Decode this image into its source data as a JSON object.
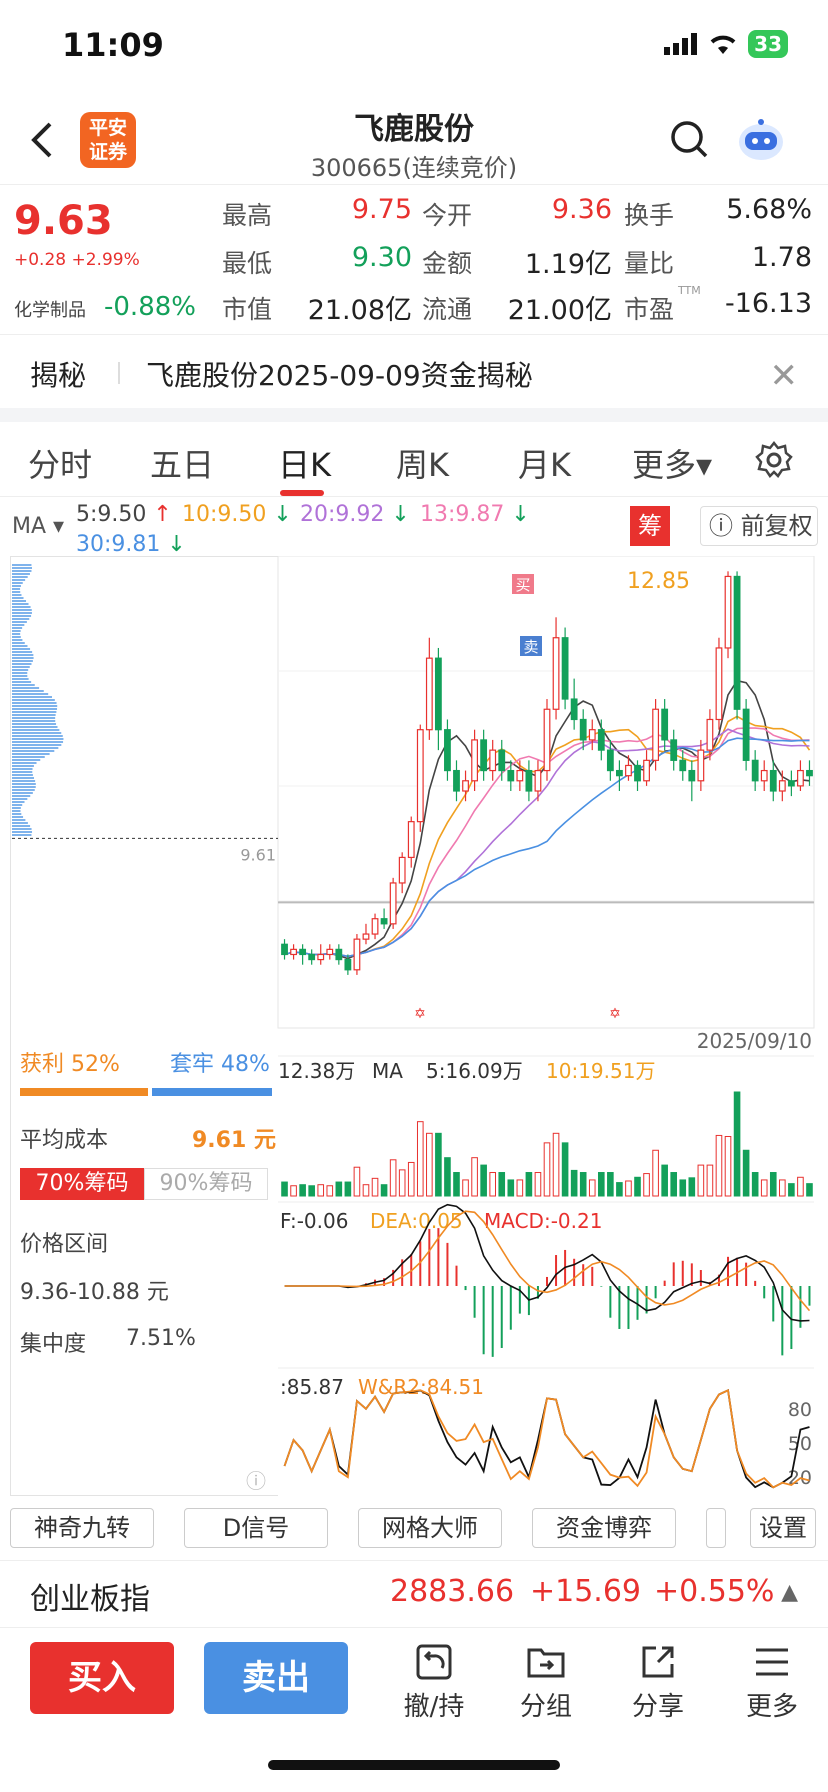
{
  "status_bar": {
    "time": "11:09",
    "battery": "33"
  },
  "header": {
    "title": "飞鹿股份",
    "subtitle": "300665(连续竞价)",
    "broker_logo": "平安证券"
  },
  "quote": {
    "price": "9.63",
    "change": "+0.28 +2.99%",
    "industry": "化学制品",
    "industry_change": "-0.88%",
    "fields": [
      {
        "label": "最高",
        "value": "9.75",
        "tone": "red"
      },
      {
        "label": "今开",
        "value": "9.36",
        "tone": "red"
      },
      {
        "label": "换手",
        "value": "5.68%",
        "tone": "dark"
      },
      {
        "label": "最低",
        "value": "9.30",
        "tone": "green"
      },
      {
        "label": "金额",
        "value": "1.19亿",
        "tone": "dark"
      },
      {
        "label": "量比",
        "value": "1.78",
        "tone": "dark"
      },
      {
        "label": "市值",
        "value": "21.08亿",
        "tone": "dark"
      },
      {
        "label": "流通",
        "value": "21.00亿",
        "tone": "dark"
      },
      {
        "label": "市盈",
        "label_sup": "TTM",
        "value": "-16.13",
        "tone": "dark"
      }
    ]
  },
  "announcement": {
    "tag": "揭秘",
    "text": "飞鹿股份2025-09-09资金揭秘"
  },
  "tabs": [
    "分时",
    "五日",
    "日K",
    "周K",
    "月K",
    "更多"
  ],
  "active_tab": "日K",
  "ma_legend": {
    "label": "MA",
    "items": [
      {
        "text": "5:9.50",
        "arrow": "↑",
        "color": "#444444",
        "arrow_color": "#e8312e"
      },
      {
        "text": "10:9.50",
        "arrow": "↓",
        "color": "#f0a020",
        "arrow_color": "#13a05a"
      },
      {
        "text": "20:9.92",
        "arrow": "↓",
        "color": "#b072d8",
        "arrow_color": "#13a05a"
      },
      {
        "text": "13:9.87",
        "arrow": "↓",
        "color": "#f07ab0",
        "arrow_color": "#13a05a"
      },
      {
        "text": "30:9.81",
        "arrow": "↓",
        "color": "#4a90e2",
        "arrow_color": "#13a05a"
      }
    ],
    "chou_label": "筹",
    "fuquan": "前复权"
  },
  "chip_panel": {
    "cost_line_value": "9.61",
    "profit_label": "获利 52%",
    "trapped_label": "套牢 48%",
    "profit_ratio": 0.52,
    "avg_cost_label": "平均成本",
    "avg_cost_value": "9.61 元",
    "btn70": "70%筹码",
    "btn90": "90%筹码",
    "range_label": "价格区间",
    "range_value": "9.36-10.88 元",
    "concentration_label": "集中度",
    "concentration_value": "7.51%"
  },
  "chart_data": {
    "type": "candlestick",
    "date_label": "2025/09/10",
    "high_annotation": "12.85",
    "buy_marker": "买",
    "sell_marker": "卖",
    "candles": [
      [
        9.2,
        9.1,
        9.25,
        9.05
      ],
      [
        9.1,
        9.15,
        9.2,
        9.05
      ],
      [
        9.15,
        9.1,
        9.2,
        9.0
      ],
      [
        9.1,
        9.05,
        9.15,
        9.0
      ],
      [
        9.05,
        9.1,
        9.2,
        9.0
      ],
      [
        9.1,
        9.15,
        9.2,
        9.05
      ],
      [
        9.15,
        9.05,
        9.2,
        9.0
      ],
      [
        9.05,
        8.95,
        9.1,
        8.9
      ],
      [
        8.95,
        9.25,
        9.3,
        8.9
      ],
      [
        9.25,
        9.3,
        9.4,
        9.2
      ],
      [
        9.3,
        9.45,
        9.5,
        9.25
      ],
      [
        9.45,
        9.4,
        9.55,
        9.35
      ],
      [
        9.4,
        9.8,
        9.85,
        9.35
      ],
      [
        9.8,
        10.05,
        10.1,
        9.7
      ],
      [
        10.05,
        10.4,
        10.45,
        9.95
      ],
      [
        10.4,
        11.3,
        11.35,
        10.3
      ],
      [
        11.3,
        12.0,
        12.2,
        11.2
      ],
      [
        12.0,
        11.3,
        12.1,
        11.1
      ],
      [
        11.3,
        10.9,
        11.4,
        10.8
      ],
      [
        10.9,
        10.7,
        11.0,
        10.6
      ],
      [
        10.7,
        10.8,
        10.9,
        10.6
      ],
      [
        10.8,
        11.2,
        11.3,
        10.7
      ],
      [
        11.2,
        10.9,
        11.3,
        10.8
      ],
      [
        10.9,
        11.1,
        11.2,
        10.8
      ],
      [
        11.1,
        10.9,
        11.2,
        10.8
      ],
      [
        10.9,
        10.8,
        11.0,
        10.7
      ],
      [
        10.8,
        10.9,
        11.0,
        10.7
      ],
      [
        10.9,
        10.7,
        11.0,
        10.6
      ],
      [
        10.7,
        10.9,
        11.0,
        10.6
      ],
      [
        10.9,
        11.5,
        11.6,
        10.8
      ],
      [
        11.5,
        12.2,
        12.4,
        11.4
      ],
      [
        12.2,
        11.6,
        12.3,
        11.5
      ],
      [
        11.6,
        11.4,
        11.8,
        11.3
      ],
      [
        11.4,
        11.2,
        11.5,
        11.1
      ],
      [
        11.2,
        11.3,
        11.4,
        11.1
      ],
      [
        11.3,
        11.1,
        11.4,
        11.0
      ],
      [
        11.1,
        10.9,
        11.2,
        10.8
      ],
      [
        10.9,
        10.85,
        11.0,
        10.7
      ],
      [
        10.85,
        10.95,
        11.05,
        10.8
      ],
      [
        10.95,
        10.8,
        11.0,
        10.7
      ],
      [
        10.8,
        11.0,
        11.1,
        10.75
      ],
      [
        11.0,
        11.5,
        11.6,
        10.9
      ],
      [
        11.5,
        11.2,
        11.6,
        11.1
      ],
      [
        11.2,
        11.0,
        11.3,
        10.9
      ],
      [
        11.0,
        10.9,
        11.1,
        10.8
      ],
      [
        10.9,
        10.8,
        11.0,
        10.6
      ],
      [
        10.8,
        11.1,
        11.2,
        10.7
      ],
      [
        11.1,
        11.4,
        11.5,
        11.0
      ],
      [
        11.4,
        12.1,
        12.2,
        11.3
      ],
      [
        12.1,
        12.8,
        12.85,
        12.0
      ],
      [
        12.8,
        11.5,
        12.85,
        11.4
      ],
      [
        11.5,
        11.0,
        11.6,
        10.9
      ],
      [
        11.0,
        10.8,
        11.1,
        10.7
      ],
      [
        10.8,
        10.9,
        11.0,
        10.7
      ],
      [
        10.9,
        10.7,
        11.0,
        10.6
      ],
      [
        10.7,
        10.8,
        10.9,
        10.6
      ],
      [
        10.8,
        10.75,
        10.9,
        10.65
      ],
      [
        10.75,
        10.9,
        11.0,
        10.7
      ],
      [
        10.9,
        10.85,
        11.0,
        10.75
      ]
    ],
    "volume_legend": {
      "value": "12.38万",
      "ma_label": "MA",
      "ma5": "5:16.09万",
      "ma10": "10:19.51万"
    },
    "macd_legend": {
      "dif": "F:-0.06",
      "dea": "DEA:0.05",
      "macd": "MACD:-0.21"
    },
    "wr_legend": {
      "wr1": ":85.87",
      "wr2": "W&R2:84.51"
    },
    "wr_ticks": [
      "80",
      "50",
      "20"
    ],
    "colors": {
      "up": "#e8312e",
      "down": "#13a05a",
      "ma5": "#444444",
      "ma10": "#f0a020",
      "ma20": "#b072d8",
      "ma13": "#f07ab0",
      "ma30": "#4a90e2"
    }
  },
  "tools": [
    "神奇九转",
    "D信号",
    "网格大师",
    "资金博弈",
    "设置"
  ],
  "index_bar": {
    "name": "创业板指",
    "value": "2883.66",
    "change": "+15.69",
    "pct": "+0.55%"
  },
  "bottom_bar": {
    "buy": "买入",
    "sell": "卖出",
    "actions": [
      "撤/持",
      "分组",
      "分享",
      "更多"
    ]
  }
}
